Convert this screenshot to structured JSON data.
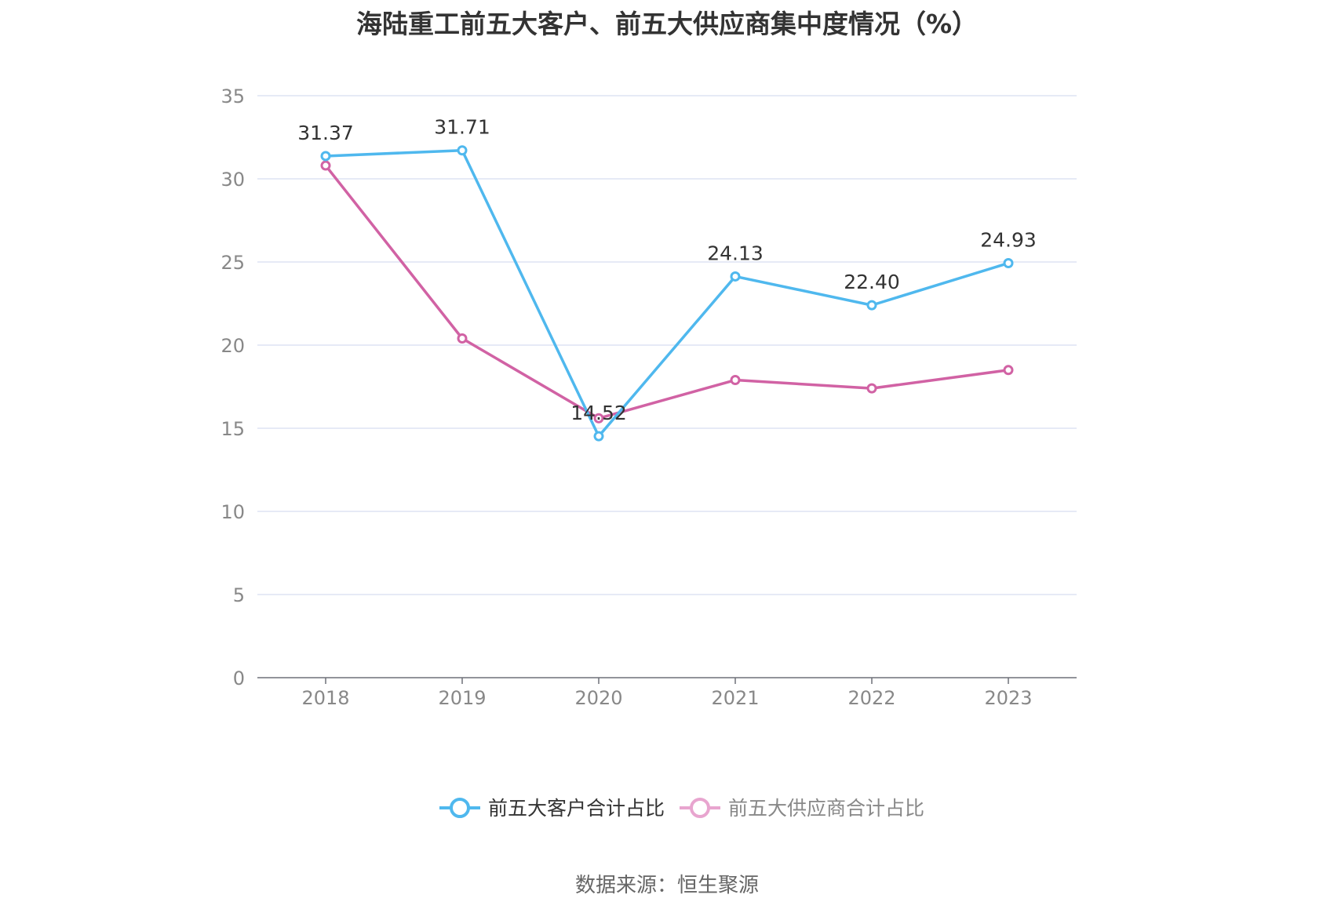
{
  "chart_data": {
    "type": "line",
    "title": "海陆重工前五大客户、前五大供应商集中度情况（%）",
    "categories": [
      "2018",
      "2019",
      "2020",
      "2021",
      "2022",
      "2023"
    ],
    "ylim": [
      0,
      35
    ],
    "yticks": [
      0,
      5,
      10,
      15,
      20,
      25,
      30,
      35
    ],
    "grid": true,
    "legend_position": "bottom",
    "series": [
      {
        "name": "前五大客户合计占比",
        "color": "#4fb8ee",
        "values": [
          31.37,
          31.71,
          14.52,
          24.13,
          22.4,
          24.93
        ],
        "labels": [
          "31.37",
          "31.71",
          "14.52",
          "24.13",
          "22.40",
          "24.93"
        ]
      },
      {
        "name": "前五大供应商合计占比",
        "color": "#d162a4",
        "legend_color": "#e8a5cf",
        "values": [
          30.8,
          20.4,
          15.6,
          17.9,
          17.4,
          18.5
        ]
      }
    ]
  },
  "source": "数据来源：恒生聚源"
}
